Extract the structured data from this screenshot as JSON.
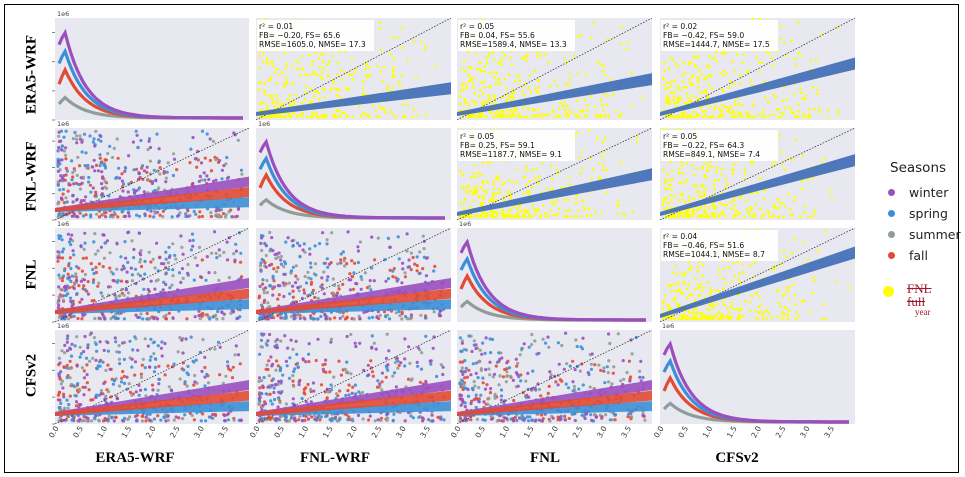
{
  "variables": [
    "ERA5-WRF",
    "FNL-WRF",
    "FNL",
    "CFSv2"
  ],
  "legend": {
    "title": "Seasons",
    "items": [
      {
        "label": "winter",
        "color": "#9b4fbf"
      },
      {
        "label": "spring",
        "color": "#3c8fd6"
      },
      {
        "label": "summer",
        "color": "#909c98"
      },
      {
        "label": "fall",
        "color": "#e24a33"
      }
    ],
    "extra": {
      "label": "FNL full",
      "label_tail": "year",
      "color": "#ffff00"
    }
  },
  "chart_data": {
    "type": "scatter",
    "layout": "pair-plot 4x4",
    "variables": [
      "ERA5-WRF",
      "FNL-WRF",
      "FNL",
      "CFSv2"
    ],
    "scale_label": "1e6",
    "x_ticks": [
      "0.0",
      "0.5",
      "1.0",
      "1.5",
      "2.0",
      "2.5",
      "3.0",
      "3.5"
    ],
    "xlim": [
      0,
      3.8
    ],
    "background": "#e8e8f0",
    "diagonal": "season KDE curves",
    "lower_triangle": "season scatter with regression bands",
    "upper_triangle": "FNL full-year scatter (yellow) with regression band",
    "annotations": [
      {
        "row": "ERA5-WRF",
        "col": "FNL-WRF",
        "lines": [
          "r² = 0.01",
          "FB= −0.20, FS= 65.6",
          "RMSE=1605.0, NMSE= 17.3"
        ]
      },
      {
        "row": "ERA5-WRF",
        "col": "FNL",
        "lines": [
          "r² = 0.05",
          "FB= 0.04, FS= 55.6",
          "RMSE=1589.4, NMSE= 13.3"
        ]
      },
      {
        "row": "ERA5-WRF",
        "col": "CFSv2",
        "lines": [
          "r² = 0.02",
          "FB= −0.42, FS= 59.0",
          "RMSE=1444.7, NMSE= 17.5"
        ]
      },
      {
        "row": "FNL-WRF",
        "col": "FNL",
        "lines": [
          "r² = 0.05",
          "FB= 0.25, FS= 59.1",
          "RMSE=1187.7, NMSE= 9.1"
        ]
      },
      {
        "row": "FNL-WRF",
        "col": "CFSv2",
        "lines": [
          "r² = 0.05",
          "FB= −0.22, FS= 64.3",
          "RMSE=849.1, NMSE= 7.4"
        ]
      },
      {
        "row": "FNL",
        "col": "CFSv2",
        "lines": [
          "r² = 0.04",
          "FB= −0.46, FS= 51.6",
          "RMSE=1044.1, NMSE= 8.7"
        ]
      }
    ]
  }
}
